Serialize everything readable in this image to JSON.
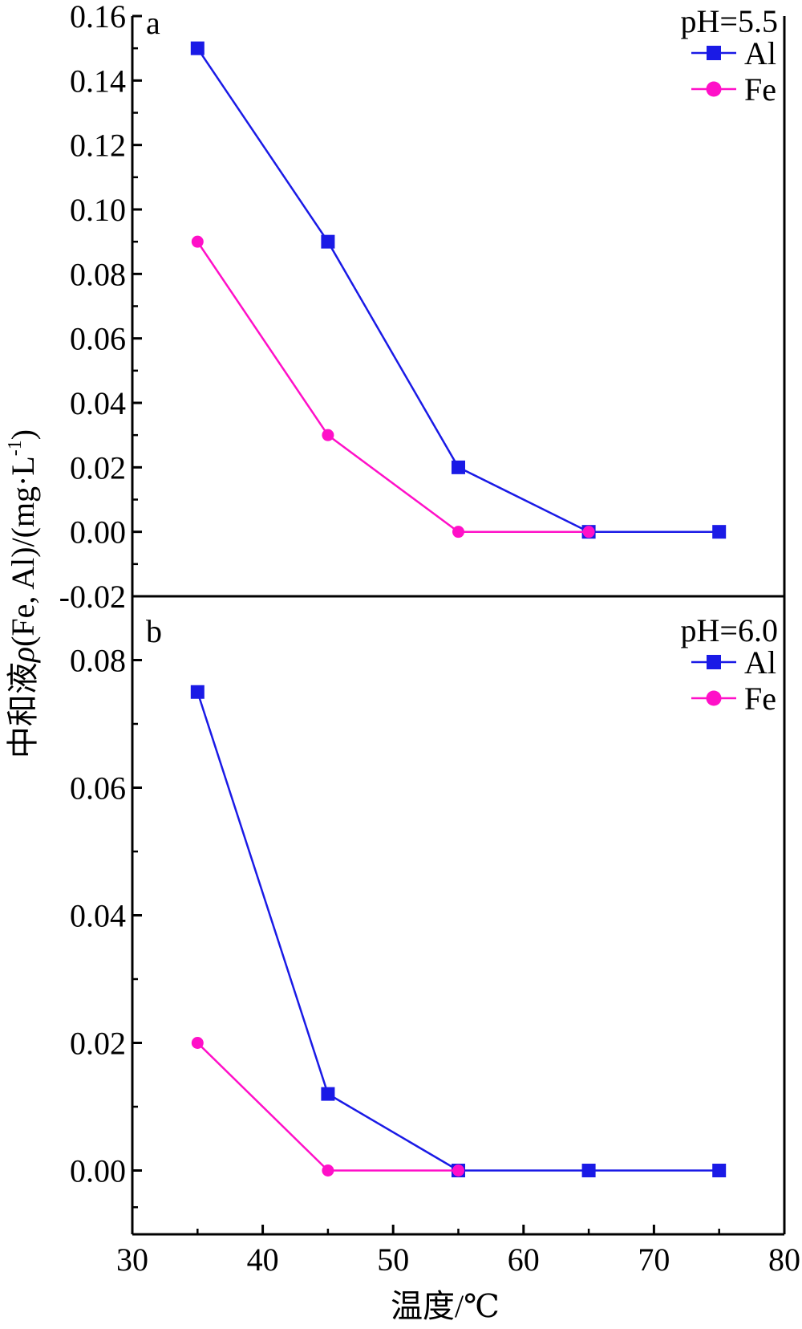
{
  "chart_data": [
    {
      "type": "line",
      "panel_label": "a",
      "legend_title": "pH=5.5",
      "legend_position": "top-right",
      "x": [
        35,
        45,
        55,
        65,
        75
      ],
      "xlim": [
        30,
        80
      ],
      "ylim": [
        -0.02,
        0.16
      ],
      "y_ticks": [
        -0.02,
        0.0,
        0.02,
        0.04,
        0.06,
        0.08,
        0.1,
        0.12,
        0.14,
        0.16
      ],
      "y_tick_labels": [
        "-0.02",
        "0.00",
        "0.02",
        "0.04",
        "0.06",
        "0.08",
        "0.10",
        "0.12",
        "0.14",
        "0.16"
      ],
      "grid": false,
      "series": [
        {
          "name": "Al",
          "marker": "square",
          "color": "#1a1ae6",
          "x": [
            35,
            45,
            55,
            65,
            75
          ],
          "values": [
            0.15,
            0.09,
            0.02,
            0.0,
            0.0
          ]
        },
        {
          "name": "Fe",
          "marker": "circle",
          "color": "#ff10c8",
          "x": [
            35,
            45,
            55,
            65
          ],
          "values": [
            0.09,
            0.03,
            0.0,
            0.0
          ]
        }
      ]
    },
    {
      "type": "line",
      "panel_label": "b",
      "legend_title": "pH=6.0",
      "legend_position": "top-right",
      "x": [
        35,
        45,
        55,
        65,
        75
      ],
      "xlim": [
        30,
        80
      ],
      "ylim": [
        -0.01,
        0.09
      ],
      "y_ticks": [
        0.0,
        0.02,
        0.04,
        0.06,
        0.08
      ],
      "y_tick_labels": [
        "0.00",
        "0.02",
        "0.04",
        "0.06",
        "0.08"
      ],
      "grid": false,
      "series": [
        {
          "name": "Al",
          "marker": "square",
          "color": "#1a1ae6",
          "x": [
            35,
            45,
            55,
            65,
            75
          ],
          "values": [
            0.075,
            0.012,
            0.0,
            0.0,
            0.0
          ]
        },
        {
          "name": "Fe",
          "marker": "circle",
          "color": "#ff10c8",
          "x": [
            35,
            45,
            55
          ],
          "values": [
            0.02,
            0.0,
            0.0
          ]
        }
      ]
    }
  ],
  "axes": {
    "xlabel": "温度/℃",
    "ylabel_prefix": "中和液",
    "ylabel_rho": "ρ",
    "ylabel_rest": "(Fe, Al)/(mg·L",
    "ylabel_sup": "-1",
    "ylabel_end": ")",
    "x_ticks": [
      30,
      40,
      50,
      60,
      70,
      80
    ],
    "x_tick_labels": [
      "30",
      "40",
      "50",
      "60",
      "70",
      "80"
    ]
  },
  "colors": {
    "axis": "#000000",
    "al": "#1a1ae6",
    "fe": "#ff10c8"
  }
}
